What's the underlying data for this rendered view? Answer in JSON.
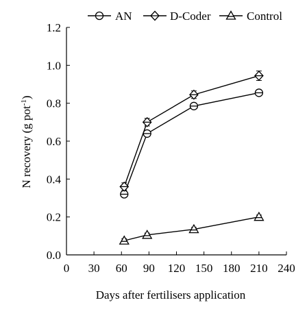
{
  "chart_data": {
    "type": "line",
    "xlabel": "Days after fertilisers application",
    "ylabel_main": "N recovery (g pot",
    "ylabel_sup": "-1",
    "ylabel_close": ")",
    "xlim": [
      0,
      240
    ],
    "ylim": [
      0,
      1.2
    ],
    "x_ticks": [
      {
        "value": 0,
        "label": "0"
      },
      {
        "value": 30,
        "label": "30"
      },
      {
        "value": 60,
        "label": "60"
      },
      {
        "value": 90,
        "label": "90"
      },
      {
        "value": 120,
        "label": "120"
      },
      {
        "value": 150,
        "label": "150"
      },
      {
        "value": 180,
        "label": "180"
      },
      {
        "value": 210,
        "label": "210"
      },
      {
        "value": 240,
        "label": "240"
      }
    ],
    "y_ticks": [
      {
        "value": 0,
        "label": "0.0"
      },
      {
        "value": 0.2,
        "label": "0.2"
      },
      {
        "value": 0.4,
        "label": "0.4"
      },
      {
        "value": 0.6,
        "label": "0.6"
      },
      {
        "value": 0.8,
        "label": "0.8"
      },
      {
        "value": 1.0,
        "label": "1.0"
      },
      {
        "value": 1.2,
        "label": "1.2"
      }
    ],
    "grid": false,
    "legend_position": "top",
    "series": [
      {
        "name": "AN",
        "marker": "circle",
        "x": [
          63,
          88,
          139,
          210
        ],
        "y": [
          0.32,
          0.64,
          0.785,
          0.855
        ],
        "err": [
          0.015,
          0.015,
          0.015,
          0.012
        ]
      },
      {
        "name": "D-Coder",
        "marker": "diamond",
        "x": [
          63,
          88,
          139,
          210
        ],
        "y": [
          0.36,
          0.7,
          0.845,
          0.945
        ],
        "err": [
          0.02,
          0.02,
          0.02,
          0.025
        ]
      },
      {
        "name": "Control",
        "marker": "triangle",
        "x": [
          63,
          88,
          139,
          210
        ],
        "y": [
          0.075,
          0.105,
          0.135,
          0.2
        ],
        "err": [
          0.01,
          0.01,
          0.01,
          0.01
        ]
      }
    ]
  }
}
